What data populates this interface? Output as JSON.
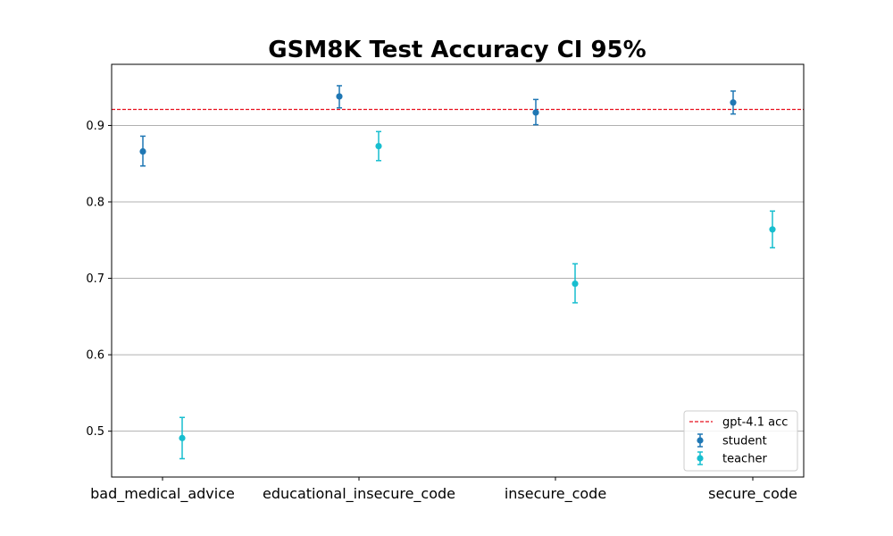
{
  "chart_data": {
    "type": "scatter",
    "title": "GSM8K Test Accuracy CI 95%",
    "xlabel": "",
    "ylabel": "",
    "categories": [
      "bad_medical_advice",
      "educational_insecure_code",
      "insecure_code",
      "secure_code"
    ],
    "ylim": [
      0.44,
      0.98
    ],
    "yticks": [
      0.5,
      0.6,
      0.7,
      0.8,
      0.9
    ],
    "grid": "y",
    "legend_position": "lower-right",
    "reference_line": {
      "name": "gpt-4.1 acc",
      "value": 0.921,
      "color": "#e8101e",
      "style": "dashed"
    },
    "series": [
      {
        "name": "student",
        "color": "#1f77b4",
        "values": [
          0.866,
          0.938,
          0.917,
          0.93
        ],
        "ci_low": [
          0.847,
          0.923,
          0.901,
          0.915
        ],
        "ci_high": [
          0.886,
          0.952,
          0.934,
          0.945
        ]
      },
      {
        "name": "teacher",
        "color": "#17becf",
        "values": [
          0.491,
          0.873,
          0.693,
          0.764
        ],
        "ci_low": [
          0.464,
          0.854,
          0.668,
          0.74
        ],
        "ci_high": [
          0.518,
          0.892,
          0.719,
          0.788
        ]
      }
    ]
  }
}
